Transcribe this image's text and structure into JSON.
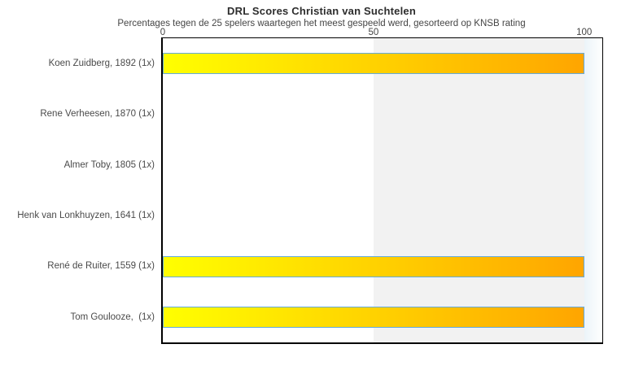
{
  "title": "DRL Scores Christian van Suchtelen",
  "subtitle": "Percentages tegen de 25 spelers waartegen het meest gespeeld werd, gesorteerd op KNSB rating",
  "chart_data": {
    "type": "bar",
    "orientation": "horizontal",
    "categories": [
      "Koen Zuidberg, 1892 (1x)",
      "Rene Verheesen, 1870 (1x)",
      "Almer Toby, 1805 (1x)",
      "Henk van Lonkhuyzen, 1641 (1x)",
      "René de Ruiter, 1559 (1x)",
      "Tom Goulooze,  (1x)"
    ],
    "values": [
      100,
      0,
      0,
      0,
      100,
      100
    ],
    "xlabel": "",
    "ylabel": "",
    "xticks": [
      0,
      50,
      100
    ],
    "xlim": [
      0,
      104.3
    ],
    "legend": "none",
    "grid_bands": [
      {
        "from": 0,
        "to": 50,
        "color": "#ffffff"
      },
      {
        "from": 50,
        "to": 100,
        "color": "#f2f2f2"
      }
    ],
    "right_margin_band": {
      "from": 100,
      "color_from": "#ecf4f9",
      "color_to": "#fefffe"
    },
    "bar_gradient": [
      "#ffff00",
      "#ffa500"
    ],
    "bar_border_color": "#64aadc",
    "plot_border_color": "#000000"
  }
}
